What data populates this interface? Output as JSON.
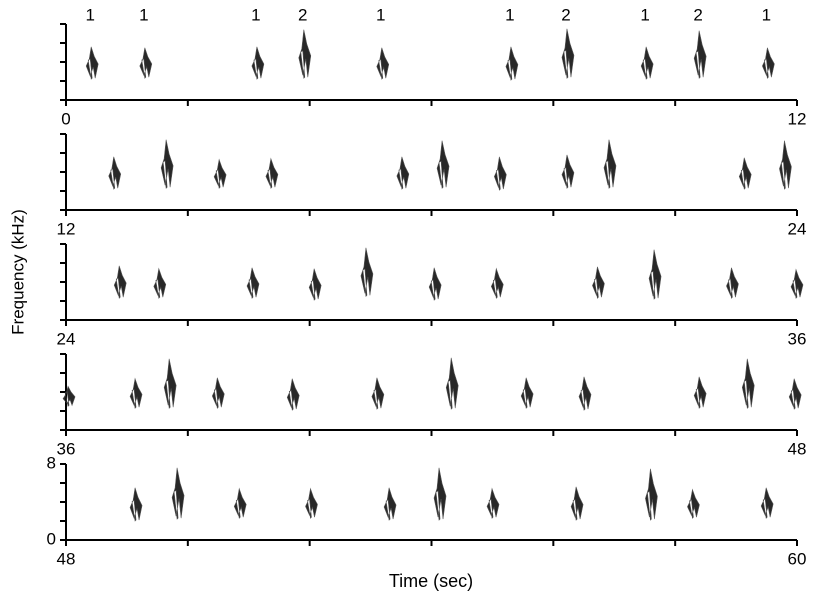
{
  "chart_data": {
    "type": "spectrogram",
    "xlabel": "Time (sec)",
    "ylabel": "Frequency (kHz)",
    "panels": [
      {
        "xlim": [
          0,
          12
        ],
        "xticks": [
          0,
          12
        ],
        "minor_xticks": [
          2,
          4,
          6,
          8,
          10
        ],
        "ylim": [
          0,
          8
        ],
        "yticks": [],
        "minor_yticks": [
          0,
          2,
          4,
          6,
          8
        ],
        "x": [
          0.43,
          1.31,
          3.15,
          3.92,
          5.2,
          7.32,
          8.24,
          9.54,
          10.41,
          11.53
        ],
        "low": [
          2.3,
          2.4,
          2.3,
          2.4,
          2.3,
          2.2,
          2.4,
          2.3,
          2.4,
          2.4
        ],
        "high": [
          5.6,
          5.5,
          5.6,
          7.4,
          5.5,
          5.6,
          7.5,
          5.6,
          7.3,
          5.5
        ],
        "labels": [
          "1",
          "1",
          "1",
          "2",
          "1",
          "1",
          "2",
          "1",
          "2",
          "1"
        ]
      },
      {
        "xlim": [
          12,
          24
        ],
        "xticks": [
          12,
          24
        ],
        "minor_xticks": [
          14,
          16,
          18,
          20,
          22
        ],
        "ylim": [
          0,
          8
        ],
        "yticks": [],
        "minor_yticks": [
          0,
          2,
          4,
          6,
          8
        ],
        "x": [
          12.8,
          13.66,
          14.53,
          15.38,
          17.53,
          18.19,
          19.13,
          20.24,
          20.93,
          23.15,
          23.81
        ],
        "low": [
          2.3,
          2.4,
          2.4,
          2.4,
          2.3,
          2.4,
          2.2,
          2.4,
          2.4,
          2.3,
          2.3
        ],
        "high": [
          5.6,
          7.4,
          5.3,
          5.4,
          5.6,
          7.3,
          5.6,
          5.8,
          7.4,
          5.5,
          7.3
        ]
      },
      {
        "xlim": [
          24,
          36
        ],
        "xticks": [
          24,
          36
        ],
        "minor_xticks": [
          26,
          28,
          30,
          32,
          34
        ],
        "ylim": [
          0,
          8
        ],
        "yticks": [],
        "minor_yticks": [
          0,
          2,
          4,
          6,
          8
        ],
        "x": [
          24.89,
          25.54,
          27.07,
          28.09,
          28.94,
          30.06,
          31.08,
          32.74,
          33.67,
          34.94,
          36.0
        ],
        "low": [
          2.4,
          2.4,
          2.4,
          2.2,
          2.6,
          2.2,
          2.4,
          2.4,
          2.3,
          2.4,
          2.4
        ],
        "high": [
          5.7,
          5.4,
          5.5,
          5.4,
          7.6,
          5.5,
          5.4,
          5.6,
          7.4,
          5.5,
          5.3
        ]
      },
      {
        "xlim": [
          36,
          48
        ],
        "xticks": [
          36,
          48
        ],
        "minor_xticks": [
          38,
          40,
          42,
          44,
          46
        ],
        "ylim": [
          0,
          8
        ],
        "yticks": [],
        "minor_yticks": [
          0,
          2,
          4,
          6,
          8
        ],
        "x": [
          36.05,
          37.15,
          37.71,
          38.5,
          39.73,
          41.12,
          42.34,
          43.57,
          44.52,
          46.41,
          47.2,
          47.97
        ],
        "low": [
          2.6,
          2.4,
          2.4,
          2.4,
          2.2,
          2.3,
          2.3,
          2.4,
          2.2,
          2.4,
          2.4,
          2.3
        ],
        "high": [
          4.6,
          5.4,
          7.5,
          5.5,
          5.4,
          5.5,
          7.6,
          5.5,
          5.6,
          5.6,
          7.5,
          5.4
        ]
      },
      {
        "xlim": [
          48,
          60
        ],
        "xticks": [
          48,
          60
        ],
        "minor_xticks": [
          50,
          52,
          54,
          56,
          58
        ],
        "ylim": [
          0,
          8
        ],
        "yticks": [
          0,
          8
        ],
        "minor_yticks": [
          2,
          4,
          6
        ],
        "x": [
          49.15,
          49.84,
          50.86,
          52.03,
          53.32,
          54.14,
          55.01,
          56.39,
          57.61,
          58.3,
          59.51
        ],
        "low": [
          2.1,
          2.3,
          2.4,
          2.4,
          2.2,
          2.2,
          2.4,
          2.2,
          2.2,
          2.4,
          2.4
        ],
        "high": [
          5.5,
          7.6,
          5.4,
          5.4,
          5.5,
          7.6,
          5.4,
          5.6,
          7.5,
          5.3,
          5.5
        ]
      }
    ]
  }
}
